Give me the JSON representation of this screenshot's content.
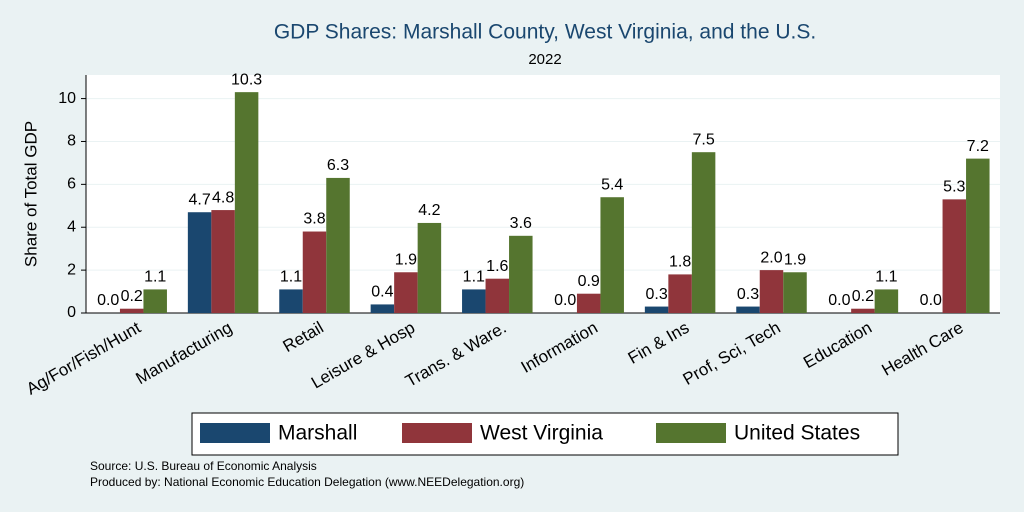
{
  "chart_data": {
    "type": "bar",
    "title": "GDP Shares: Marshall County, West Virginia, and the U.S.",
    "subtitle": "2022",
    "y_label": "Share of Total GDP",
    "categories": [
      "Ag/For/Fish/Hunt",
      "Manufacturing",
      "Retail",
      "Leisure & Hosp",
      "Trans. & Ware.",
      "Information",
      "Fin & Ins",
      "Prof, Sci, Tech",
      "Education",
      "Health Care"
    ],
    "series": [
      {
        "name": "Marshall",
        "color": "#1a476f",
        "values": [
          0.0,
          4.7,
          1.1,
          0.4,
          1.1,
          0.0,
          0.3,
          0.3,
          0.0,
          0.0
        ],
        "value_labels": [
          "0.0",
          "4.7",
          "1.1",
          "0.4",
          "1.1",
          "0.0",
          "0.3",
          "0.3",
          "0.0",
          "0.0"
        ]
      },
      {
        "name": "West Virginia",
        "color": "#90353b",
        "values": [
          0.2,
          4.8,
          3.8,
          1.9,
          1.6,
          0.9,
          1.8,
          2.0,
          0.2,
          5.3
        ],
        "value_labels": [
          "0.2",
          "4.8",
          "3.8",
          "1.9",
          "1.6",
          "0.9",
          "1.8",
          "2.0",
          "0.2",
          "5.3"
        ]
      },
      {
        "name": "United States",
        "color": "#55752f",
        "values": [
          1.1,
          10.3,
          6.3,
          4.2,
          3.6,
          5.4,
          7.5,
          1.9,
          1.1,
          7.2
        ],
        "value_labels": [
          "1.1",
          "10.3",
          "6.3",
          "4.2",
          "3.6",
          "5.4",
          "7.5",
          "1.9",
          "1.1",
          "7.2"
        ]
      }
    ],
    "ylim": [
      0,
      11.1
    ],
    "yticks": [
      0,
      2,
      4,
      6,
      8,
      10
    ],
    "grid": true,
    "legend": "bottom",
    "notes": [
      "Source: U.S. Bureau of Economic Analysis",
      "Produced by: National Economic Education Delegation (www.NEEDelegation.org)"
    ]
  }
}
